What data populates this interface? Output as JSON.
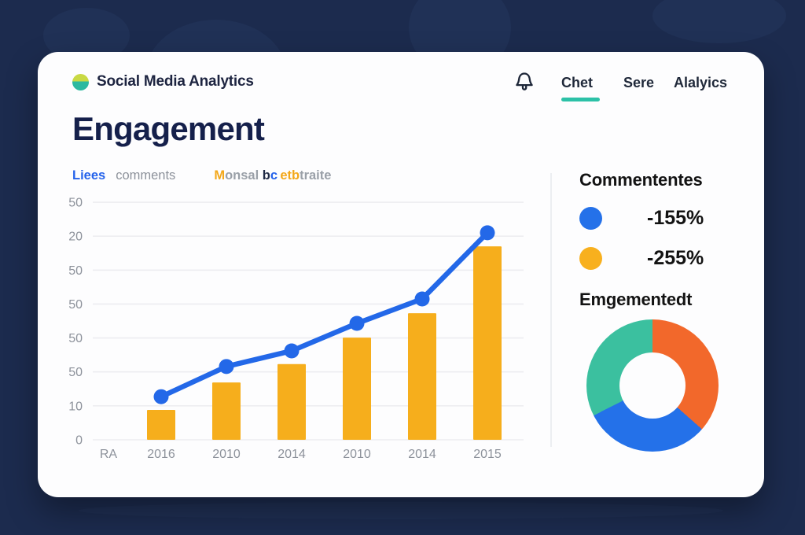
{
  "app": {
    "brand": "Social Media Analytics",
    "nav": [
      {
        "label": "Chet",
        "active": true
      },
      {
        "label": "Sere",
        "active": false
      },
      {
        "label": "Alalyics",
        "active": false
      }
    ],
    "title": "Engagement",
    "accent_teal": "#2CC1A7"
  },
  "legend": {
    "series1": {
      "label": "Liees",
      "color": "#2563EB"
    },
    "series2": {
      "label": "comments",
      "color": "#8D929B"
    },
    "extra_parts": [
      {
        "text": "M",
        "color": "#F3A81B"
      },
      {
        "text": "onsal ",
        "color": "#9AA0A8"
      },
      {
        "text": "b",
        "color": "#1F2A44"
      },
      {
        "text": "c ",
        "color": "#2563EB"
      },
      {
        "text": "etb",
        "color": "#F3A81B"
      },
      {
        "text": "traite",
        "color": "#9AA0A8"
      }
    ]
  },
  "chart_data": {
    "type": "bar",
    "subtype": "bar-and-line combo",
    "title": "Engagement",
    "x_labels": [
      "RA",
      "2016",
      "2010",
      "2014",
      "2010",
      "2014",
      "2015"
    ],
    "y_tick_labels_bottom_to_top": [
      "0",
      "10",
      "50",
      "50",
      "50",
      "50",
      "20",
      "50"
    ],
    "categories": [
      "2016",
      "2010",
      "2014",
      "2010",
      "2014",
      "2015"
    ],
    "series": [
      {
        "name": "comments",
        "type": "bar",
        "color": "#F6AE1C",
        "values": [
          8.8,
          16.9,
          22.3,
          30.1,
          37.3,
          57
        ]
      },
      {
        "name": "Liees",
        "type": "line",
        "color": "#2368E8",
        "values": [
          12.7,
          21.6,
          26.2,
          34.3,
          41.5,
          61
        ]
      }
    ],
    "ylim": [
      0,
      70
    ],
    "grid": true,
    "legend_position": "top-left",
    "note": "values in gridline units (one gridline step = 10); printed tick labels are garbled"
  },
  "right_panel": {
    "legend_title": "Commententes",
    "items": [
      {
        "label": "-155%",
        "color": "#2471E9"
      },
      {
        "label": "-255%",
        "color": "#F8B01E"
      }
    ],
    "donut_title": "Emgementedt",
    "donut": {
      "type": "pie",
      "segments": [
        {
          "name": "orange",
          "color": "#F2682B",
          "pct": 36.5
        },
        {
          "name": "blue",
          "color": "#2471E9",
          "pct": 31.0
        },
        {
          "name": "teal",
          "color": "#3BC09F",
          "pct": 32.5
        }
      ]
    }
  }
}
